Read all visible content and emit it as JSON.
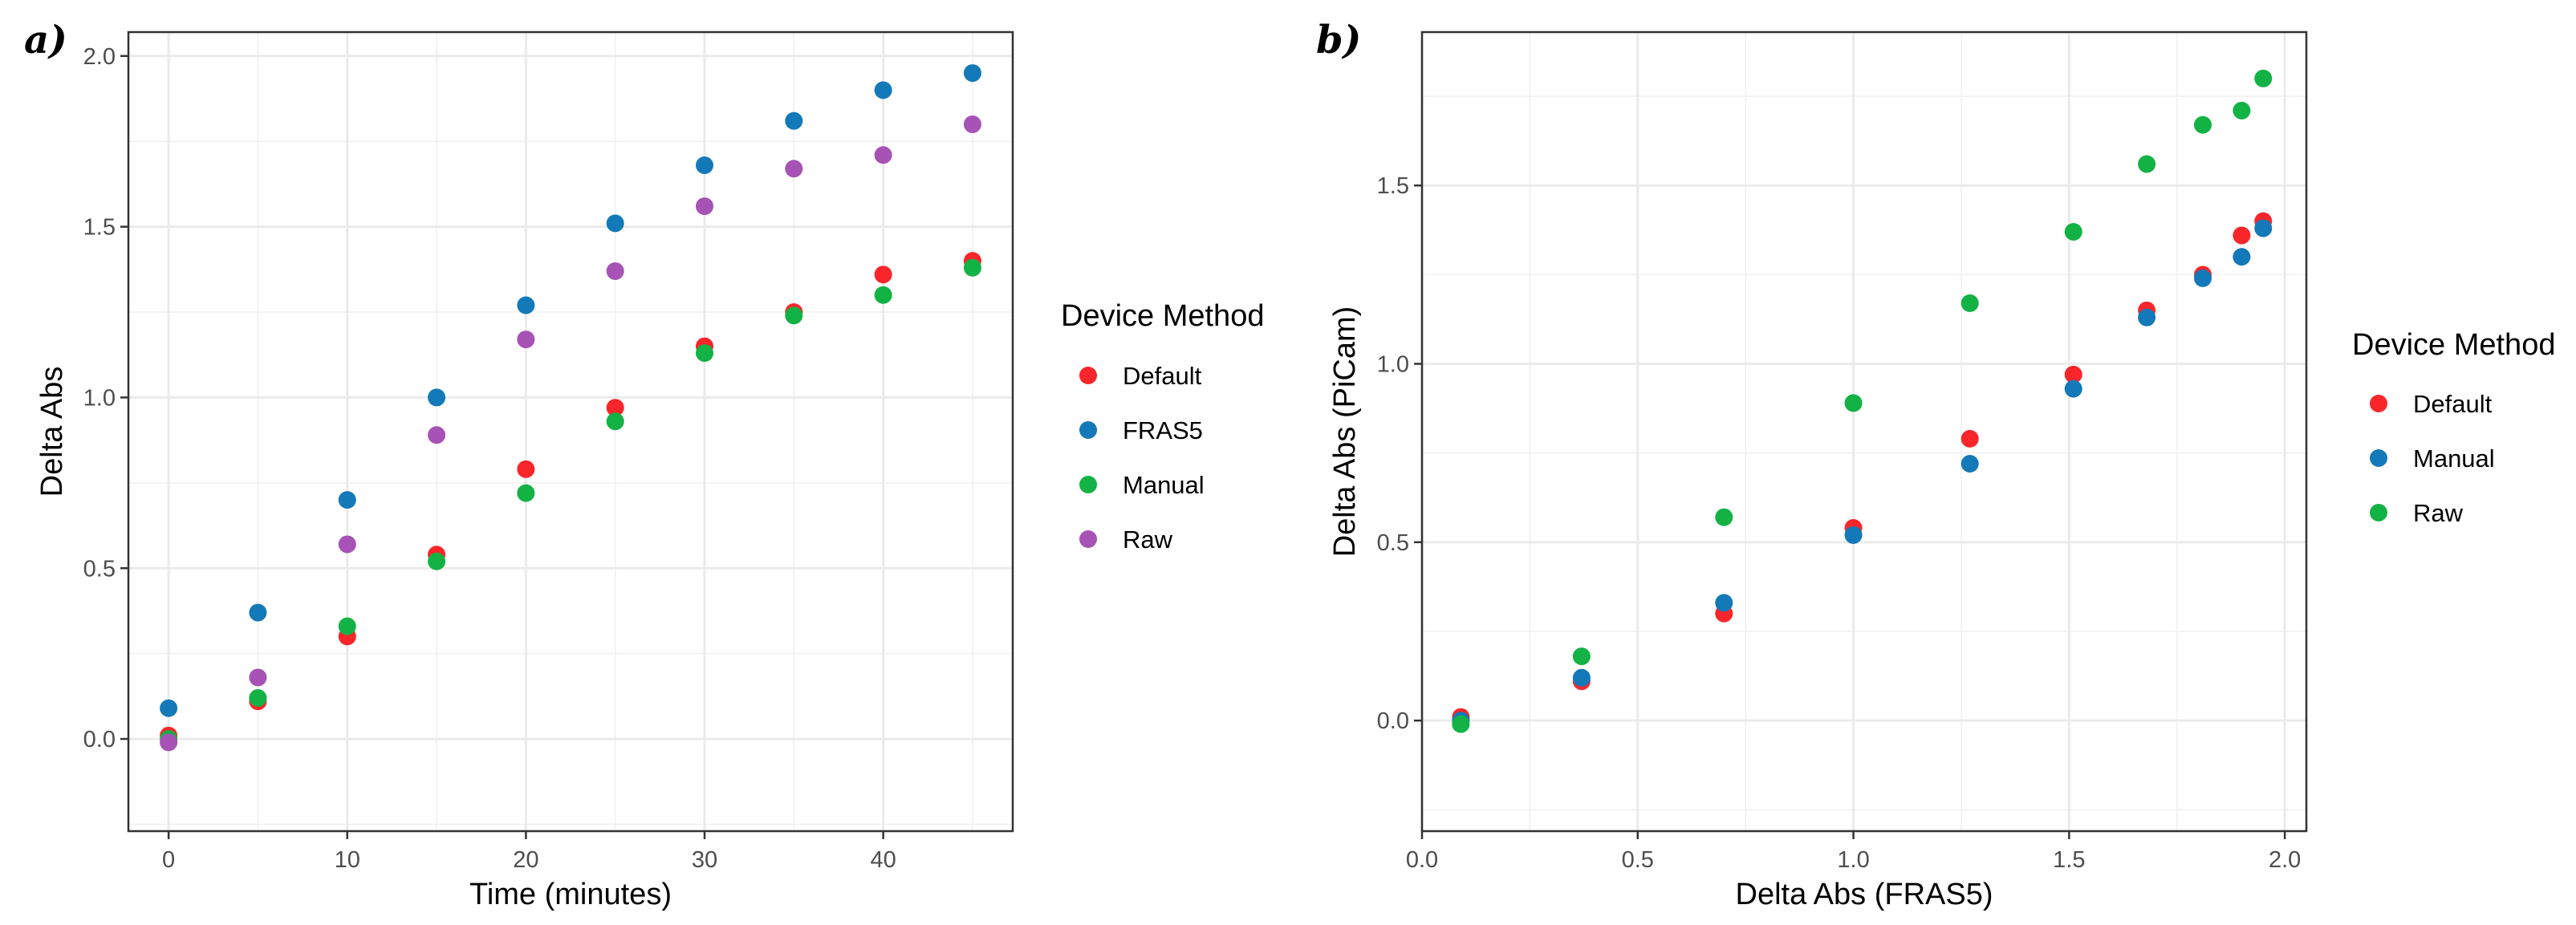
{
  "chart_data": [
    {
      "panel": "a)",
      "type": "scatter",
      "xlabel": "Time (minutes)",
      "ylabel": "Delta Abs",
      "xlim": [
        -2.25,
        47.25
      ],
      "ylim": [
        -0.27,
        2.07
      ],
      "xticks": [
        0,
        10,
        20,
        30,
        40
      ],
      "xtick_labels": [
        "0",
        "10",
        "20",
        "30",
        "40"
      ],
      "yticks": [
        0.0,
        0.5,
        1.0,
        1.5,
        2.0
      ],
      "ytick_labels": [
        "0.0",
        "0.5",
        "1.0",
        "1.5",
        "2.0"
      ],
      "grid": true,
      "legend_title": "Device Method",
      "legend_position": "right",
      "x": [
        0,
        5,
        10,
        15,
        20,
        25,
        30,
        35,
        40,
        45
      ],
      "series": [
        {
          "name": "Default",
          "color": "#F8262A",
          "values": [
            0.01,
            0.11,
            0.3,
            0.54,
            0.79,
            0.97,
            1.15,
            1.25,
            1.36,
            1.4
          ]
        },
        {
          "name": "FRAS5",
          "color": "#1479B8",
          "values": [
            0.09,
            0.37,
            0.7,
            1.0,
            1.27,
            1.51,
            1.68,
            1.81,
            1.9,
            1.95
          ]
        },
        {
          "name": "Manual",
          "color": "#13B244",
          "values": [
            0.0,
            0.12,
            0.33,
            0.52,
            0.72,
            0.93,
            1.13,
            1.24,
            1.3,
            1.38
          ]
        },
        {
          "name": "Raw",
          "color": "#A752B5",
          "values": [
            -0.01,
            0.18,
            0.57,
            0.89,
            1.17,
            1.37,
            1.56,
            1.67,
            1.71,
            1.8
          ]
        }
      ]
    },
    {
      "panel": "b)",
      "type": "scatter",
      "xlabel": "Delta Abs (FRAS5)",
      "ylabel": "Delta Abs (PiCam)",
      "xlim": [
        0.0,
        2.05
      ],
      "ylim": [
        -0.31,
        1.93
      ],
      "xticks": [
        0.0,
        0.5,
        1.0,
        1.5,
        2.0
      ],
      "xtick_labels": [
        "0.0",
        "0.5",
        "1.0",
        "1.5",
        "2.0"
      ],
      "yticks": [
        0.0,
        0.5,
        1.0,
        1.5
      ],
      "ytick_labels": [
        "0.0",
        "0.5",
        "1.0",
        "1.5"
      ],
      "grid": true,
      "legend_title": "Device Method",
      "legend_position": "right",
      "x": [
        0.09,
        0.37,
        0.7,
        1.0,
        1.27,
        1.51,
        1.68,
        1.81,
        1.9,
        1.95
      ],
      "series": [
        {
          "name": "Default",
          "color": "#F8262A",
          "values": [
            0.01,
            0.11,
            0.3,
            0.54,
            0.79,
            0.97,
            1.15,
            1.25,
            1.36,
            1.4
          ]
        },
        {
          "name": "Manual",
          "color": "#1479B8",
          "values": [
            0.0,
            0.12,
            0.33,
            0.52,
            0.72,
            0.93,
            1.13,
            1.24,
            1.3,
            1.38
          ]
        },
        {
          "name": "Raw",
          "color": "#13B244",
          "values": [
            -0.01,
            0.18,
            0.57,
            0.89,
            1.17,
            1.37,
            1.56,
            1.67,
            1.71,
            1.8
          ]
        }
      ]
    }
  ]
}
